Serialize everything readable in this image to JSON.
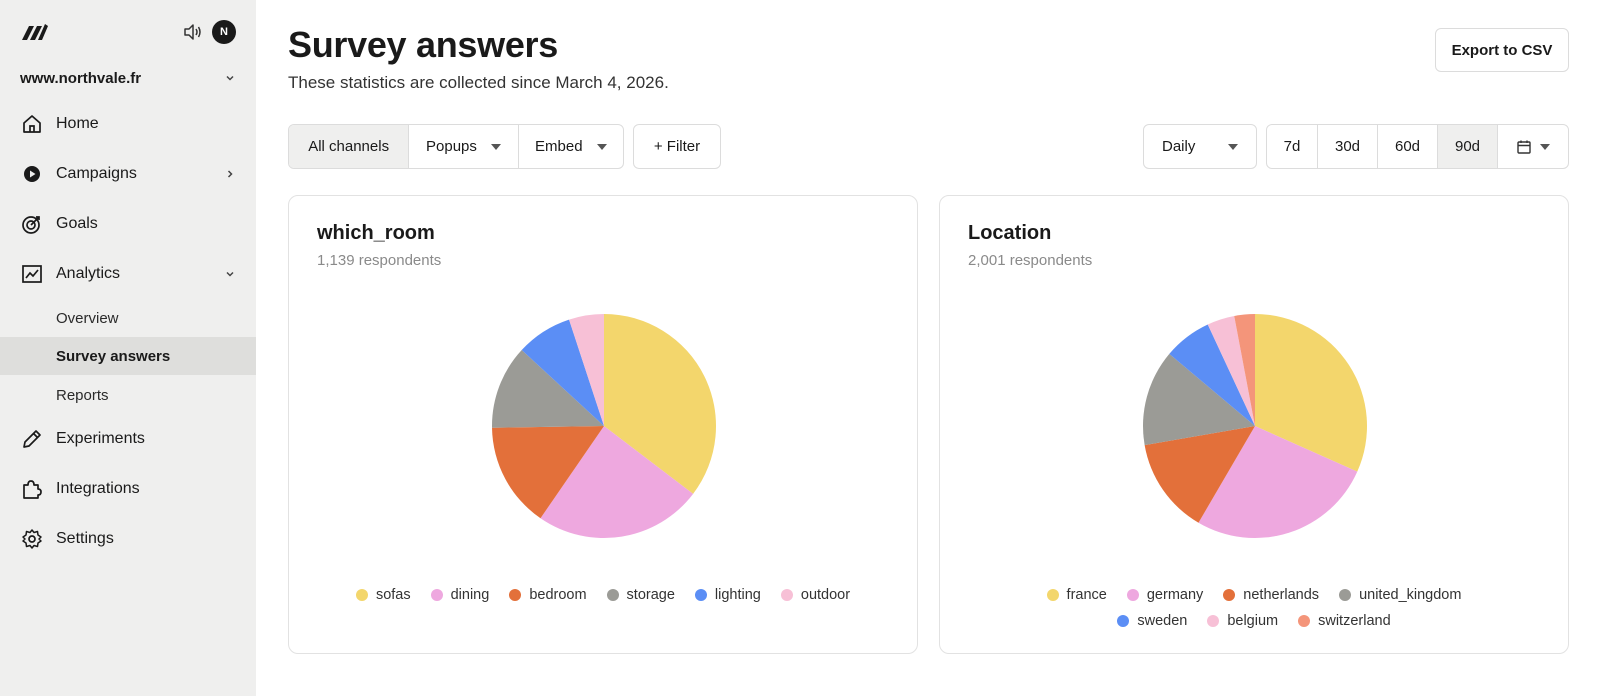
{
  "sidebar": {
    "avatar_initial": "N",
    "site": "www.northvale.fr",
    "nav": {
      "home": "Home",
      "campaigns": "Campaigns",
      "goals": "Goals",
      "analytics": "Analytics",
      "experiments": "Experiments",
      "integrations": "Integrations",
      "settings": "Settings"
    },
    "analytics_sub": {
      "overview": "Overview",
      "survey_answers": "Survey answers",
      "reports": "Reports"
    }
  },
  "header": {
    "title": "Survey answers",
    "subtitle": "These statistics are collected since March 4, 2026.",
    "export_label": "Export to CSV"
  },
  "filters": {
    "all_channels": "All channels",
    "popups": "Popups",
    "embed": "Embed",
    "add_filter": "+ Filter",
    "granularity": "Daily",
    "ranges": [
      "7d",
      "30d",
      "60d",
      "90d"
    ],
    "selected_range": "90d"
  },
  "chart_data": [
    {
      "type": "pie",
      "title": "which_room",
      "subtitle": "1,139 respondents",
      "labels": [
        "sofas",
        "dining",
        "bedroom",
        "storage",
        "lighting",
        "outdoor"
      ],
      "values": [
        35,
        24,
        15,
        12,
        8,
        5
      ],
      "colors": [
        "#f3d66c",
        "#eea8df",
        "#e3703a",
        "#9b9b96",
        "#5b8ef5",
        "#f7c0d6"
      ]
    },
    {
      "type": "pie",
      "title": "Location",
      "subtitle": "2,001 respondents",
      "labels": [
        "france",
        "germany",
        "netherlands",
        "united_kingdom",
        "sweden",
        "belgium",
        "switzerland"
      ],
      "values": [
        32,
        27,
        14,
        14,
        7,
        4,
        3
      ],
      "colors": [
        "#f3d66c",
        "#eea8df",
        "#e3703a",
        "#9b9b96",
        "#5b8ef5",
        "#f7c0d6",
        "#f4957a"
      ]
    }
  ]
}
